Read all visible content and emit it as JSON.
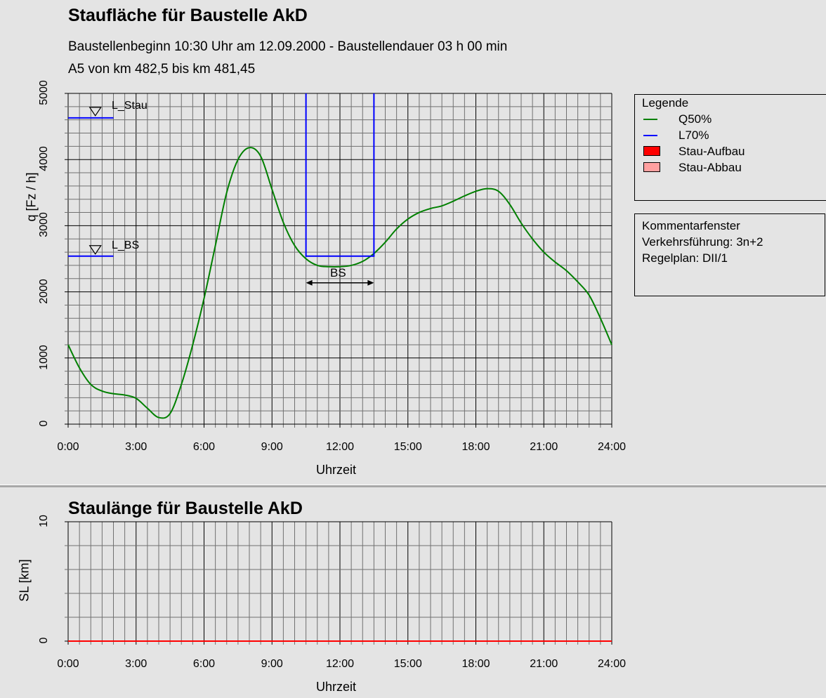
{
  "top": {
    "title": "Staufläche für Baustelle AkD",
    "subtitle1": "Baustellenbeginn 10:30 Uhr am 12.09.2000 - Baustellendauer 03 h  00 min",
    "subtitle2": "A5 von km 482,5 bis km 481,45",
    "ylabel": "q [Fz / h]",
    "xlabel": "Uhrzeit",
    "yticks": [
      "0",
      "1000",
      "2000",
      "3000",
      "4000",
      "5000"
    ],
    "xticks": [
      "0:00",
      "3:00",
      "6:00",
      "9:00",
      "12:00",
      "15:00",
      "18:00",
      "21:00",
      "24:00"
    ],
    "marker_stau": "L_Stau",
    "marker_bs": "L_BS",
    "bs_label": "BS"
  },
  "legend": {
    "title": "Legende",
    "items": [
      {
        "label": "Q50%",
        "kind": "line",
        "color": "#008000"
      },
      {
        "label": "L70%",
        "kind": "line",
        "color": "#0000ff"
      },
      {
        "label": "Stau-Aufbau",
        "kind": "swatch",
        "color": "#ff0000"
      },
      {
        "label": "Stau-Abbau",
        "kind": "swatch",
        "color": "#ffa0a0"
      }
    ]
  },
  "comment": {
    "title": "Kommentarfenster",
    "line1": "Verkehrsführung: 3n+2",
    "line2": "Regelplan: DII/1"
  },
  "bottom": {
    "title": "Staulänge für Baustelle AkD",
    "ylabel": "SL [km]",
    "xlabel": "Uhrzeit",
    "yticks": [
      "0",
      "10"
    ],
    "xticks": [
      "0:00",
      "3:00",
      "6:00",
      "9:00",
      "12:00",
      "15:00",
      "18:00",
      "21:00",
      "24:00"
    ]
  },
  "chart_data": [
    {
      "type": "line",
      "title": "Staufläche für Baustelle AkD",
      "xlabel": "Uhrzeit",
      "ylabel": "q [Fz / h]",
      "xlim": [
        0,
        24
      ],
      "ylim": [
        0,
        5000
      ],
      "grid": true,
      "legend_position": "right",
      "markers": {
        "L_Stau": 4630,
        "L_BS": 2540
      },
      "construction_window": {
        "label": "BS",
        "start": 10.5,
        "end": 13.5,
        "capacity": 2540
      },
      "series": [
        {
          "name": "Q50%",
          "color": "#008000",
          "x": [
            0,
            0.5,
            1,
            1.5,
            2,
            2.5,
            3,
            3.5,
            4,
            4.5,
            5,
            5.5,
            6,
            6.5,
            7,
            7.5,
            8,
            8.5,
            9,
            9.5,
            10,
            10.5,
            11,
            11.5,
            12,
            12.5,
            13,
            13.5,
            14,
            14.5,
            15,
            15.5,
            16,
            16.5,
            17,
            17.5,
            18,
            18.5,
            19,
            19.5,
            20,
            20.5,
            21,
            21.5,
            22,
            22.5,
            23,
            23.5,
            24
          ],
          "y": [
            1200,
            850,
            600,
            500,
            460,
            440,
            390,
            240,
            100,
            160,
            600,
            1200,
            1900,
            2700,
            3500,
            4000,
            4180,
            4050,
            3550,
            3050,
            2700,
            2500,
            2400,
            2380,
            2380,
            2400,
            2460,
            2580,
            2750,
            2950,
            3100,
            3200,
            3260,
            3300,
            3370,
            3450,
            3520,
            3560,
            3520,
            3320,
            3040,
            2800,
            2600,
            2450,
            2320,
            2150,
            1950,
            1600,
            1200
          ]
        },
        {
          "name": "L70%",
          "color": "#0000ff",
          "x": [
            10.5,
            10.5,
            13.5,
            13.5
          ],
          "y": [
            5000,
            2540,
            2540,
            5000
          ]
        }
      ]
    },
    {
      "type": "line",
      "title": "Staulänge für Baustelle AkD",
      "xlabel": "Uhrzeit",
      "ylabel": "SL [km]",
      "xlim": [
        0,
        24
      ],
      "ylim": [
        0,
        10
      ],
      "grid": true,
      "series": [
        {
          "name": "Stau-Aufbau",
          "color": "#ff0000",
          "x": [
            0,
            24
          ],
          "y": [
            0,
            0
          ]
        }
      ]
    }
  ]
}
